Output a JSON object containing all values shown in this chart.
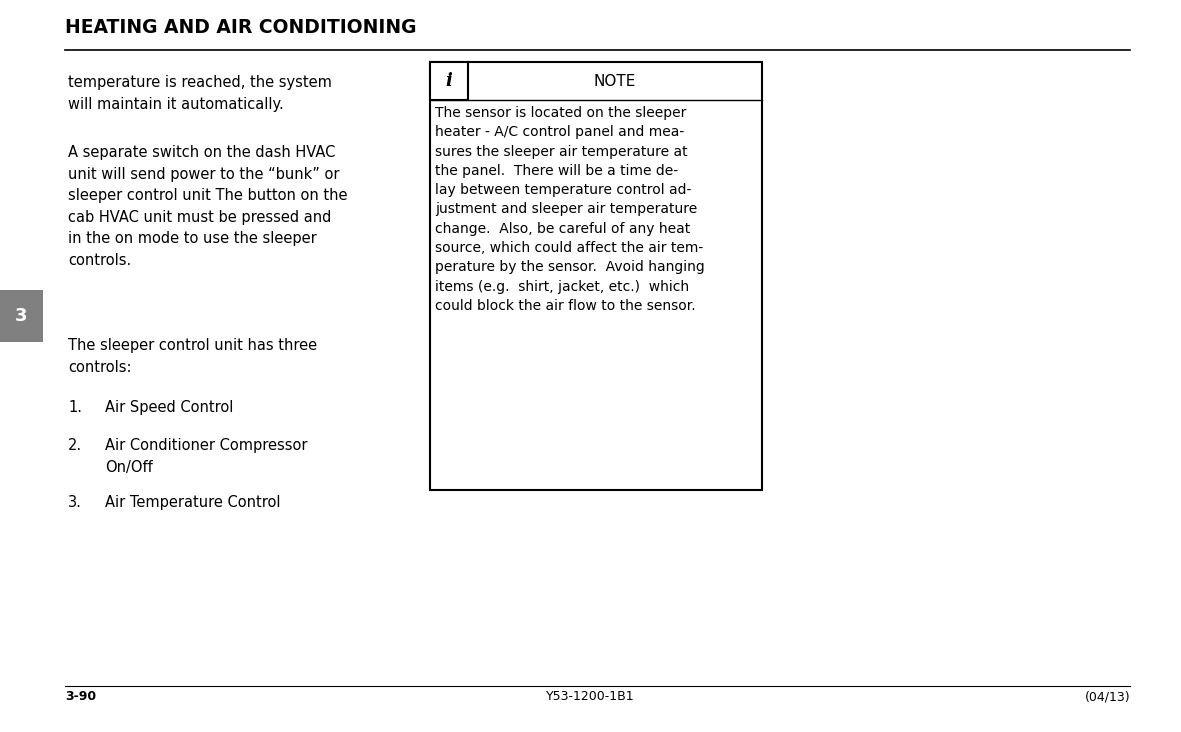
{
  "title": "HEATING AND AIR CONDITIONING",
  "page_bg": "#ffffff",
  "title_color": "#000000",
  "tab_bg": "#808080",
  "tab_text": "3",
  "tab_text_color": "#ffffff",
  "note_title": "NOTE",
  "note_icon": "i",
  "footer_left": "3-90",
  "footer_center": "Y53-1200-1B1",
  "footer_right": "(04/13)"
}
